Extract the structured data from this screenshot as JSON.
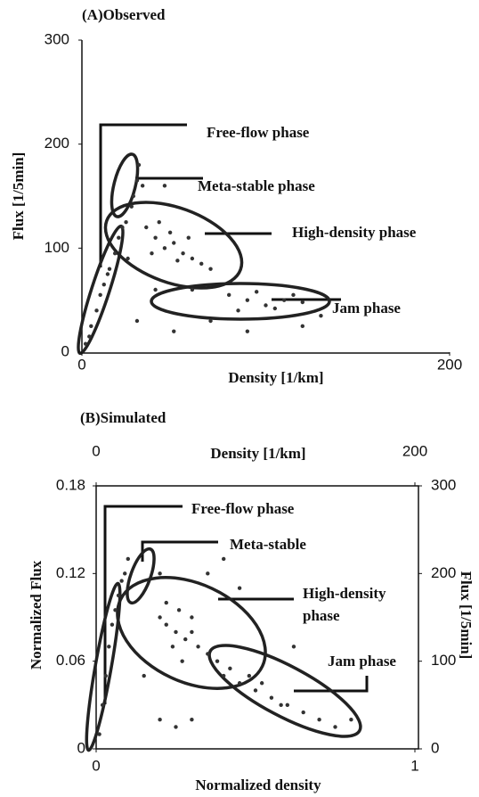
{
  "chart_data": [
    {
      "type": "scatter",
      "title": "(A)Observed",
      "xlabel": "Density [1/km]",
      "ylabel": "Flux [1/5min]",
      "xlim": [
        0,
        200
      ],
      "xticks": [
        0,
        200
      ],
      "ylim": [
        0,
        300
      ],
      "yticks": [
        0,
        100,
        200,
        300
      ],
      "grid": false,
      "color": "#333333",
      "annotations": [
        "Free-flow phase",
        "Meta-stable phase",
        "High-density phase",
        "Jam phase"
      ],
      "x": [
        2,
        5,
        8,
        10,
        12,
        15,
        18,
        20,
        22,
        4,
        14,
        24,
        28,
        30,
        31,
        27,
        33,
        35,
        40,
        45,
        50,
        55,
        60,
        42,
        38,
        65,
        70,
        48,
        58,
        52,
        80,
        90,
        100,
        110,
        120,
        85,
        95,
        105,
        115,
        30,
        50,
        60,
        70,
        40,
        90,
        120,
        130,
        45,
        25
      ],
      "values": [
        8,
        25,
        40,
        55,
        65,
        80,
        95,
        110,
        120,
        15,
        75,
        125,
        150,
        165,
        180,
        140,
        160,
        120,
        110,
        100,
        105,
        95,
        90,
        125,
        95,
        85,
        80,
        115,
        110,
        88,
        55,
        50,
        45,
        50,
        48,
        40,
        58,
        42,
        55,
        30,
        20,
        60,
        30,
        60,
        20,
        25,
        35,
        160,
        90
      ]
    },
    {
      "type": "scatter",
      "title": "(B)Simulated",
      "xlabel": "Normalized density",
      "ylabel": "Normalized Flux",
      "xlim": [
        0,
        1
      ],
      "xticks": [
        0,
        1
      ],
      "ylim": [
        0,
        0.18
      ],
      "yticks": [
        0,
        0.06,
        0.12,
        0.18
      ],
      "grid": false,
      "color": "#333333",
      "x2label": "Density [1/km]",
      "x2lim": [
        0,
        200
      ],
      "x2ticks": [
        0,
        200
      ],
      "y2label": "Flux [1/5min]",
      "y2lim": [
        0,
        300
      ],
      "y2ticks": [
        0,
        100,
        200,
        300
      ],
      "annotations": [
        "Free-flow phase",
        "Meta-stable",
        [
          "High-density",
          "phase"
        ],
        "Jam phase"
      ],
      "x": [
        0.01,
        0.02,
        0.03,
        0.04,
        0.05,
        0.06,
        0.07,
        0.08,
        0.09,
        0.1,
        0.2,
        0.22,
        0.25,
        0.28,
        0.3,
        0.26,
        0.24,
        0.32,
        0.35,
        0.3,
        0.22,
        0.27,
        0.38,
        0.4,
        0.42,
        0.45,
        0.5,
        0.55,
        0.6,
        0.65,
        0.7,
        0.75,
        0.48,
        0.58,
        0.52,
        0.2,
        0.25,
        0.3,
        0.35,
        0.4,
        0.45,
        0.2,
        0.62,
        0.8,
        0.15
      ],
      "values": [
        0.01,
        0.03,
        0.05,
        0.07,
        0.085,
        0.095,
        0.105,
        0.115,
        0.12,
        0.13,
        0.09,
        0.085,
        0.08,
        0.075,
        0.08,
        0.095,
        0.07,
        0.07,
        0.065,
        0.09,
        0.1,
        0.06,
        0.06,
        0.05,
        0.055,
        0.045,
        0.04,
        0.035,
        0.03,
        0.025,
        0.02,
        0.015,
        0.05,
        0.03,
        0.045,
        0.02,
        0.015,
        0.02,
        0.12,
        0.13,
        0.11,
        0.12,
        0.07,
        0.02,
        0.05
      ]
    }
  ]
}
